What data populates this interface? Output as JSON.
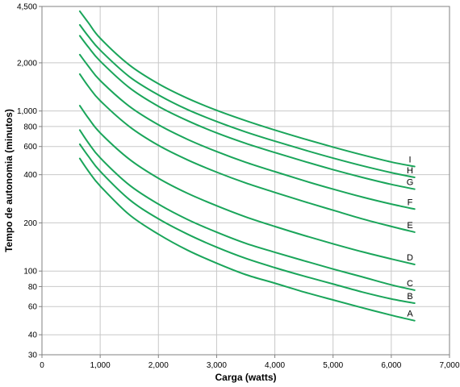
{
  "chart_data": {
    "type": "line",
    "xlabel": "Carga (watts)",
    "ylabel": "Tempo de autonomia (minutos)",
    "xlim": [
      0,
      7000
    ],
    "ylim": [
      30,
      4500
    ],
    "yscale": "log",
    "grid": true,
    "x_ticks": [
      {
        "value": 0,
        "label": "0"
      },
      {
        "value": 1000,
        "label": "1,000"
      },
      {
        "value": 2000,
        "label": "2,000"
      },
      {
        "value": 3000,
        "label": "3,000"
      },
      {
        "value": 4000,
        "label": "4,000"
      },
      {
        "value": 5000,
        "label": "5,000"
      },
      {
        "value": 6000,
        "label": "6,000"
      },
      {
        "value": 7000,
        "label": "7,000"
      }
    ],
    "y_ticks": [
      {
        "value": 30,
        "label": "30"
      },
      {
        "value": 40,
        "label": "40"
      },
      {
        "value": 60,
        "label": "60"
      },
      {
        "value": 80,
        "label": "80"
      },
      {
        "value": 100,
        "label": "100"
      },
      {
        "value": 200,
        "label": "200"
      },
      {
        "value": 400,
        "label": "400"
      },
      {
        "value": 600,
        "label": "600"
      },
      {
        "value": 800,
        "label": "800"
      },
      {
        "value": 1000,
        "label": "1,000"
      },
      {
        "value": 2000,
        "label": "2,000"
      },
      {
        "value": 4500,
        "label": "4,500"
      }
    ],
    "x": [
      650,
      800,
      1000,
      1500,
      2000,
      2500,
      3000,
      3500,
      4000,
      4500,
      5000,
      5500,
      6000,
      6400
    ],
    "series": [
      {
        "name": "A",
        "values": [
          505,
          420,
          340,
          225,
          170,
          135,
          112,
          95,
          84,
          74,
          66,
          59,
          53,
          49
        ]
      },
      {
        "name": "B",
        "values": [
          620,
          520,
          420,
          280,
          212,
          170,
          141,
          120,
          105,
          93,
          83,
          74,
          67,
          63
        ]
      },
      {
        "name": "C",
        "values": [
          760,
          630,
          510,
          345,
          262,
          210,
          175,
          149,
          131,
          116,
          103,
          92,
          82,
          76
        ]
      },
      {
        "name": "D",
        "values": [
          1080,
          900,
          730,
          500,
          380,
          306,
          256,
          218,
          190,
          167,
          148,
          132,
          119,
          110
        ]
      },
      {
        "name": "E",
        "values": [
          1700,
          1420,
          1160,
          800,
          610,
          495,
          415,
          355,
          310,
          272,
          240,
          212,
          190,
          175
        ]
      },
      {
        "name": "F",
        "values": [
          2250,
          1900,
          1550,
          1070,
          820,
          665,
          558,
          478,
          418,
          367,
          325,
          290,
          262,
          244
        ]
      },
      {
        "name": "G",
        "values": [
          2950,
          2500,
          2050,
          1400,
          1070,
          870,
          730,
          628,
          550,
          485,
          430,
          385,
          348,
          325
        ]
      },
      {
        "name": "H",
        "values": [
          3450,
          2920,
          2400,
          1640,
          1260,
          1020,
          860,
          740,
          648,
          572,
          508,
          455,
          412,
          385
        ]
      },
      {
        "name": "I",
        "values": [
          4200,
          3550,
          2850,
          1940,
          1480,
          1200,
          1010,
          870,
          760,
          670,
          595,
          532,
          480,
          450
        ]
      }
    ],
    "line_color": "#1aa55a",
    "grid_color": "#c8c8c8"
  }
}
